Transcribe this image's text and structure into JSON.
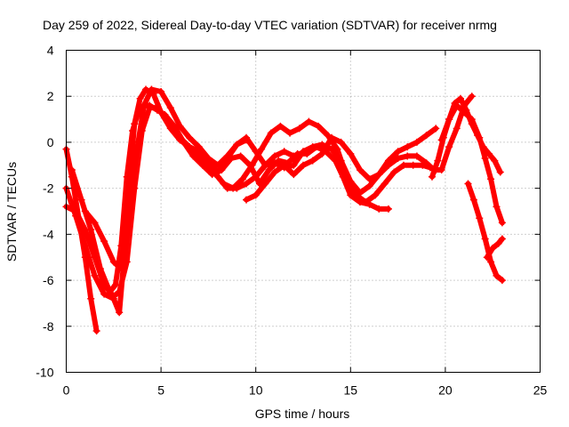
{
  "chart_data": {
    "type": "scatter",
    "marker": "plus",
    "title": "Day 259 of 2022, Sidereal Day-to-day VTEC variation (SDTVAR) for receiver nrmg",
    "xlabel": "GPS time / hours",
    "ylabel": "SDTVAR / TECUs",
    "xlim": [
      0,
      25
    ],
    "ylim": [
      -10,
      4
    ],
    "xticks": [
      0,
      5,
      10,
      15,
      20,
      25
    ],
    "yticks": [
      -10,
      -8,
      -6,
      -4,
      -2,
      0,
      2,
      4
    ],
    "grid": true,
    "color": "#ff0000",
    "series": [
      {
        "name": "track 1",
        "x": [
          0.0,
          0.3,
          0.7,
          1.0,
          1.3,
          1.6
        ],
        "y": [
          -0.3,
          -1.5,
          -3.5,
          -5.0,
          -6.8,
          -8.2
        ]
      },
      {
        "name": "track 2",
        "x": [
          0.0,
          0.5,
          1.0,
          1.5,
          2.0,
          2.5,
          2.8,
          3.0,
          3.3,
          3.6,
          3.9,
          4.2,
          4.6,
          5.0,
          5.5,
          6.0,
          6.5,
          7.0,
          7.5,
          8.0,
          8.5,
          9.0,
          9.5
        ],
        "y": [
          -2.0,
          -3.2,
          -4.5,
          -5.8,
          -6.6,
          -6.8,
          -7.4,
          -5.5,
          -2.0,
          0.8,
          1.9,
          2.3,
          2.1,
          1.3,
          0.6,
          0.1,
          -0.2,
          -0.4,
          -0.9,
          -1.3,
          -0.7,
          -0.1,
          0.1
        ]
      },
      {
        "name": "track 3",
        "x": [
          0.3,
          0.8,
          1.3,
          1.8,
          2.3,
          2.6,
          2.9,
          3.2,
          3.5,
          3.8,
          4.1,
          4.4,
          4.8,
          5.2,
          5.7,
          6.2,
          6.7,
          7.2,
          7.7,
          8.2,
          8.7,
          9.2,
          9.7,
          10.2,
          10.7,
          11.2,
          11.7,
          12.2,
          12.7,
          13.2,
          13.7,
          14.2,
          14.6,
          15.0,
          15.5,
          16.0,
          16.5,
          17.0
        ],
        "y": [
          -1.2,
          -2.5,
          -3.8,
          -5.5,
          -6.5,
          -6.2,
          -4.5,
          -1.5,
          0.5,
          1.3,
          1.6,
          1.6,
          1.4,
          1.2,
          0.7,
          0.0,
          -0.6,
          -1.0,
          -1.4,
          -1.2,
          -0.7,
          -0.6,
          -1.0,
          -1.8,
          -1.2,
          -0.8,
          -0.9,
          -0.5,
          -0.5,
          -0.2,
          -0.4,
          -0.8,
          -1.5,
          -2.3,
          -2.6,
          -2.7,
          -2.9,
          -2.9
        ]
      },
      {
        "name": "track 4",
        "x": [
          0.0,
          0.5,
          1.0,
          1.5,
          2.0,
          2.5,
          2.8,
          3.2,
          3.6,
          4.0,
          4.4,
          4.8,
          5.3,
          5.8,
          6.3,
          6.8,
          7.3,
          7.8,
          8.3,
          8.8,
          9.3,
          9.8,
          10.3,
          10.8,
          11.3,
          11.8,
          12.3,
          12.8,
          13.3,
          13.8,
          14.3,
          14.8,
          15.3,
          15.8,
          16.3,
          16.8,
          17.3,
          17.8,
          18.3,
          18.8,
          19.2,
          19.5
        ],
        "y": [
          -2.8,
          -3.0,
          -3.8,
          -5.0,
          -6.2,
          -6.7,
          -6.5,
          -5.2,
          -2.0,
          0.5,
          1.5,
          1.5,
          1.0,
          0.4,
          -0.1,
          -0.5,
          -0.8,
          -1.3,
          -1.8,
          -2.0,
          -1.6,
          -1.0,
          -0.3,
          0.4,
          0.7,
          0.4,
          0.6,
          0.9,
          0.7,
          0.3,
          -0.3,
          -1.5,
          -2.3,
          -2.6,
          -2.3,
          -1.8,
          -1.3,
          -1.0,
          -1.0,
          -1.0,
          -1.1,
          -1.2
        ]
      },
      {
        "name": "track 5",
        "x": [
          1.0,
          1.5,
          2.0,
          2.5,
          2.9,
          3.3,
          3.7,
          4.1,
          4.5,
          5.0,
          5.5,
          6.0,
          6.5,
          7.0,
          7.5,
          8.0,
          8.5,
          9.0,
          9.5,
          10.0,
          10.5,
          11.0,
          11.5,
          12.0,
          12.5,
          13.0,
          13.5,
          14.0,
          14.5,
          15.0,
          15.5,
          16.0,
          16.5,
          17.0,
          17.5,
          18.0,
          18.5,
          19.0,
          19.4,
          19.8,
          20.2,
          20.6,
          21.0,
          21.4
        ],
        "y": [
          -3.0,
          -3.5,
          -4.3,
          -5.2,
          -5.5,
          -4.0,
          -0.5,
          1.6,
          2.3,
          2.2,
          1.5,
          0.7,
          0.2,
          -0.2,
          -0.7,
          -1.0,
          -0.6,
          -0.1,
          0.2,
          -0.4,
          -1.0,
          -0.9,
          -1.1,
          -1.0,
          -0.4,
          -0.2,
          -0.1,
          -0.3,
          -0.8,
          -1.7,
          -2.2,
          -1.9,
          -1.4,
          -1.0,
          -0.7,
          -0.6,
          -0.6,
          -0.9,
          -1.2,
          -1.2,
          -0.2,
          0.6,
          1.6,
          2.0
        ]
      },
      {
        "name": "track 6",
        "x": [
          6.0,
          6.5,
          7.0,
          7.5,
          8.0,
          8.5,
          9.0,
          9.5,
          10.0,
          10.5,
          11.0,
          11.5,
          12.0
        ],
        "y": [
          0.2,
          -0.2,
          -0.5,
          -1.0,
          -1.5,
          -2.0,
          -2.0,
          -1.8,
          -1.5,
          -1.0,
          -0.6,
          -0.4,
          -0.6
        ]
      },
      {
        "name": "track 7",
        "x": [
          9.5,
          10.0,
          10.5,
          11.0,
          11.5,
          12.0,
          12.5,
          13.0,
          13.5,
          14.0,
          14.5,
          15.0,
          15.5,
          16.0,
          16.5,
          17.0,
          17.5,
          18.0,
          18.5,
          19.0,
          19.5
        ],
        "y": [
          -2.5,
          -2.3,
          -1.8,
          -1.3,
          -1.0,
          -1.4,
          -1.0,
          -0.8,
          -0.5,
          0.2,
          0.0,
          -0.5,
          -1.2,
          -1.6,
          -1.4,
          -0.8,
          -0.4,
          -0.2,
          0.0,
          0.3,
          0.6
        ]
      },
      {
        "name": "track 8",
        "x": [
          19.3,
          19.6,
          19.9,
          20.2,
          20.5,
          20.8,
          21.1,
          21.4,
          21.7,
          22.0,
          22.3,
          22.6,
          22.9
        ],
        "y": [
          -1.5,
          -0.8,
          0.2,
          1.0,
          1.7,
          1.9,
          1.4,
          0.8,
          0.3,
          -0.2,
          -0.5,
          -0.8,
          -1.3
        ]
      },
      {
        "name": "track 9",
        "x": [
          19.8,
          20.2,
          20.6,
          21.0,
          21.4,
          21.8,
          22.1,
          22.4,
          22.7,
          23.0
        ],
        "y": [
          0.1,
          1.0,
          1.6,
          1.3,
          1.0,
          0.2,
          -0.7,
          -1.6,
          -2.8,
          -3.5
        ]
      },
      {
        "name": "track 10",
        "x": [
          21.2,
          21.5,
          21.8,
          22.1,
          22.4,
          22.7,
          23.0
        ],
        "y": [
          -1.8,
          -2.5,
          -3.3,
          -4.2,
          -5.2,
          -5.8,
          -6.0
        ]
      },
      {
        "name": "track 11",
        "x": [
          22.2,
          22.5,
          22.8,
          23.0
        ],
        "y": [
          -5.0,
          -4.6,
          -4.4,
          -4.2
        ]
      }
    ]
  }
}
